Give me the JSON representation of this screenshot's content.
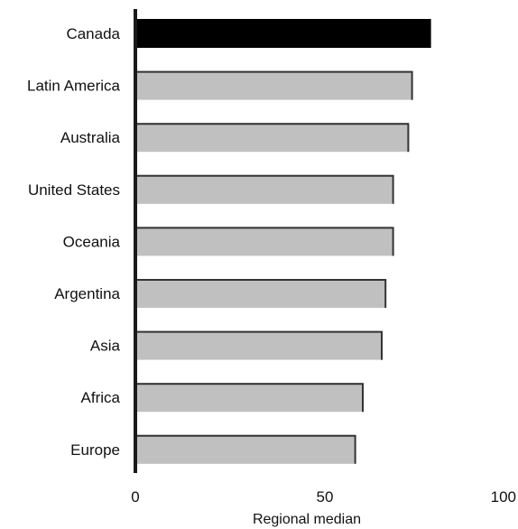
{
  "chart_data": {
    "type": "bar",
    "orientation": "horizontal",
    "title": "",
    "xlabel": "Regional median",
    "ylabel": "",
    "categories": [
      "Canada",
      "Latin America",
      "Australia",
      "United States",
      "Oceania",
      "Argentina",
      "Asia",
      "Africa",
      "Europe"
    ],
    "values": [
      78,
      73,
      72,
      68,
      68,
      66,
      65,
      60,
      58
    ],
    "highlight": "Canada",
    "colors": {
      "highlight": "#000000",
      "bar": "#c0c0c0",
      "axis": "#1a1a1a"
    },
    "xlim": [
      0,
      100
    ],
    "xticks": [
      "0",
      "50",
      "100"
    ],
    "grid": false,
    "legend": "none"
  }
}
